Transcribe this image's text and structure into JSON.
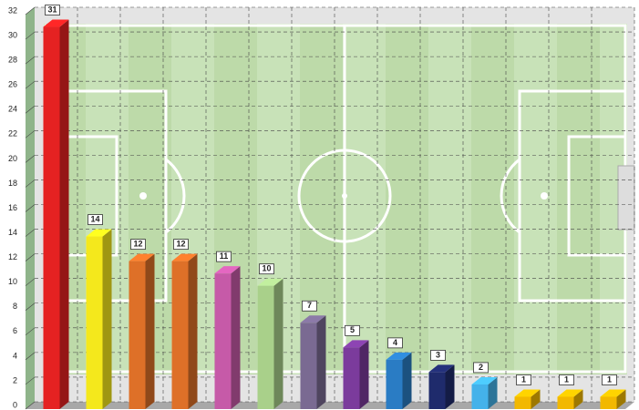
{
  "chart_data": {
    "type": "bar3d",
    "categories": [
      null,
      null,
      null,
      null,
      null,
      null,
      null,
      null,
      null,
      null,
      null,
      null,
      null,
      null
    ],
    "values": [
      31,
      14,
      12,
      12,
      11,
      10,
      7,
      5,
      4,
      3,
      2,
      1,
      1,
      1
    ],
    "colors": [
      "#e52222",
      "#f4e81c",
      "#de7028",
      "#de7028",
      "#c65aa8",
      "#a9d08a",
      "#7a6a92",
      "#7b3b9c",
      "#2a7cc4",
      "#1f2b6c",
      "#44b2ea",
      "#f2b800",
      "#f2b800",
      "#f2b800"
    ],
    "ylim": [
      0,
      32
    ],
    "yticks": [
      0,
      2,
      4,
      6,
      8,
      10,
      12,
      14,
      16,
      18,
      20,
      22,
      24,
      26,
      28,
      30,
      32
    ],
    "grid": true
  }
}
